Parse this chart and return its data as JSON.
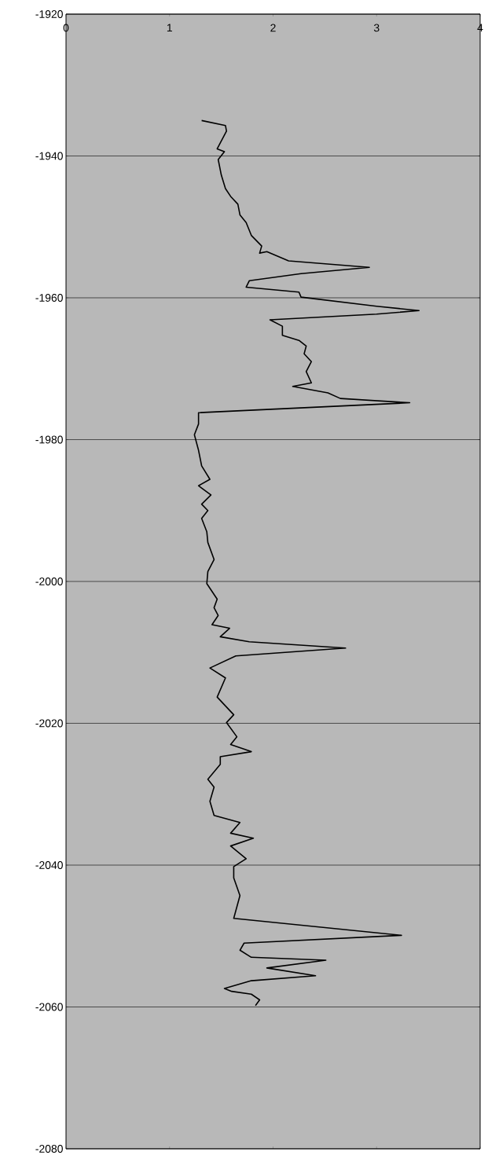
{
  "chart_data": {
    "type": "line",
    "color": "#000000",
    "marker": "none",
    "line_style": "solid",
    "grid": "y",
    "xlim": [
      0,
      4
    ],
    "xticks": [
      0,
      1,
      2,
      3,
      4
    ],
    "ylim": [
      -2080,
      -1920
    ],
    "yticks": [
      -2080,
      -2060,
      -2040,
      -2020,
      -2000,
      -1980,
      -1960,
      -1940,
      -1920
    ],
    "x": [
      1.31,
      1.54,
      1.55,
      1.46,
      1.53,
      1.47,
      1.5,
      1.54,
      1.59,
      1.66,
      1.68,
      1.74,
      1.79,
      1.89,
      1.87,
      1.94,
      2.15,
      2.93,
      2.27,
      1.77,
      1.74,
      2.25,
      2.27,
      3.0,
      3.41,
      3.0,
      1.97,
      2.09,
      2.09,
      2.25,
      2.32,
      2.3,
      2.37,
      2.32,
      2.37,
      2.19,
      2.53,
      2.65,
      3.32,
      1.28,
      1.28,
      1.24,
      1.28,
      1.31,
      1.39,
      1.28,
      1.4,
      1.31,
      1.37,
      1.31,
      1.36,
      1.37,
      1.43,
      1.37,
      1.36,
      1.46,
      1.43,
      1.47,
      1.41,
      1.58,
      1.49,
      1.77,
      2.7,
      1.64,
      1.39,
      1.54,
      1.46,
      1.62,
      1.55,
      1.65,
      1.59,
      1.79,
      1.49,
      1.49,
      1.37,
      1.43,
      1.39,
      1.43,
      1.68,
      1.59,
      1.81,
      1.59,
      1.74,
      1.62,
      1.62,
      1.68,
      1.62,
      3.24,
      1.72,
      1.68,
      1.79,
      2.51,
      1.94,
      2.41,
      1.79,
      1.53,
      1.6,
      1.79,
      1.87,
      1.83
    ],
    "values": [
      -1935.0,
      -1935.7,
      -1936.5,
      -1939.0,
      -1939.4,
      -1940.5,
      -1942.7,
      -1944.6,
      -1945.7,
      -1946.8,
      -1948.3,
      -1949.4,
      -1951.2,
      -1952.7,
      -1953.7,
      -1953.5,
      -1954.8,
      -1955.7,
      -1956.6,
      -1957.6,
      -1958.5,
      -1959.2,
      -1959.9,
      -1961.2,
      -1961.8,
      -1962.3,
      -1963.1,
      -1964.0,
      -1965.3,
      -1966.0,
      -1966.8,
      -1967.9,
      -1969.0,
      -1970.4,
      -1972.0,
      -1972.5,
      -1973.4,
      -1974.2,
      -1974.8,
      -1976.2,
      -1977.8,
      -1979.3,
      -1981.5,
      -1983.7,
      -1985.6,
      -1986.5,
      -1987.8,
      -1989.1,
      -1990.0,
      -1991.1,
      -1993.0,
      -1994.5,
      -1996.9,
      -1998.6,
      -2000.3,
      -2002.5,
      -2003.7,
      -2004.8,
      -2006.1,
      -2006.6,
      -2007.8,
      -2008.5,
      -2009.4,
      -2010.5,
      -2012.2,
      -2013.6,
      -2016.3,
      -2018.8,
      -2019.9,
      -2021.9,
      -2023.0,
      -2024.0,
      -2024.7,
      -2025.8,
      -2027.9,
      -2029.0,
      -2031.0,
      -2033.0,
      -2034.0,
      -2035.5,
      -2036.2,
      -2037.3,
      -2039.1,
      -2040.2,
      -2041.8,
      -2044.3,
      -2047.5,
      -2049.9,
      -2051.0,
      -2052.0,
      -2053.0,
      -2053.4,
      -2054.5,
      -2055.6,
      -2056.3,
      -2057.4,
      -2057.8,
      -2058.2,
      -2059.0,
      -2059.8
    ]
  }
}
